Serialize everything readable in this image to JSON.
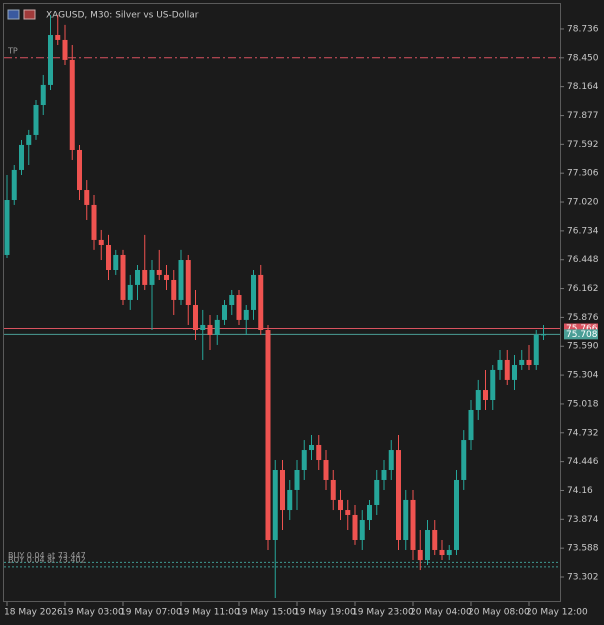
{
  "chart_data": {
    "type": "candlestick",
    "title": "XAGUSD, M30:  Silver vs US-Dollar",
    "categories": [
      "18 May 2026",
      null,
      null,
      null,
      null,
      null,
      null,
      null,
      "19 May 03:00",
      null,
      null,
      null,
      null,
      null,
      null,
      null,
      "19 May 07:00",
      null,
      null,
      null,
      null,
      null,
      null,
      null,
      "19 May 11:00",
      null,
      null,
      null,
      null,
      null,
      null,
      null,
      "19 May 15:00",
      null,
      null,
      null,
      null,
      null,
      null,
      null,
      "19 May 19:00",
      null,
      null,
      null,
      null,
      null,
      null,
      null,
      "19 May 23:00",
      null,
      null,
      null,
      null,
      null,
      null,
      null,
      "20 May 04:00",
      null,
      null,
      null,
      null,
      null,
      null,
      null,
      "20 May 08:00",
      null,
      null,
      null,
      null,
      null,
      null,
      null,
      "20 May 12:00",
      null,
      null
    ],
    "open": [
      76.495,
      77.04,
      77.338,
      77.586,
      77.685,
      77.982,
      78.181,
      78.676,
      78.627,
      78.429,
      77.536,
      77.139,
      76.991,
      76.644,
      76.594,
      76.346,
      76.495,
      76.049,
      76.198,
      76.346,
      76.198,
      76.346,
      76.297,
      76.247,
      76.049,
      76.445,
      75.999,
      75.751,
      75.801,
      75.702,
      75.851,
      75.999,
      76.098,
      75.851,
      75.95,
      76.297,
      75.751,
      73.669,
      74.363,
      73.966,
      74.165,
      74.363,
      74.561,
      74.611,
      74.462,
      74.264,
      74.066,
      73.966,
      73.917,
      73.669,
      73.867,
      74.016,
      74.264,
      74.363,
      74.561,
      73.669,
      74.066,
      73.57,
      73.47,
      73.768,
      73.57,
      73.52,
      73.57,
      74.264,
      74.66,
      74.958,
      75.156,
      75.057,
      75.355,
      75.454,
      75.256,
      75.404,
      75.454,
      75.404,
      75.702
    ],
    "high": [
      77.288,
      77.387,
      77.635,
      77.735,
      78.032,
      78.28,
      78.875,
      78.875,
      78.776,
      78.577,
      77.586,
      77.238,
      77.09,
      76.743,
      76.694,
      76.545,
      76.545,
      76.297,
      76.396,
      76.694,
      76.445,
      76.545,
      76.396,
      76.346,
      76.545,
      76.495,
      76.148,
      75.95,
      75.9,
      75.9,
      76.049,
      76.148,
      76.148,
      75.999,
      76.346,
      76.396,
      75.801,
      74.462,
      74.462,
      74.264,
      74.462,
      74.66,
      74.71,
      74.71,
      74.561,
      74.363,
      74.165,
      74.066,
      74.016,
      73.966,
      74.066,
      74.363,
      74.462,
      74.66,
      74.71,
      74.165,
      74.165,
      73.768,
      73.867,
      73.867,
      73.669,
      73.619,
      74.363,
      74.759,
      75.057,
      75.256,
      75.355,
      75.404,
      75.553,
      75.553,
      75.503,
      75.553,
      75.603,
      75.751,
      75.801
    ],
    "low": [
      76.465,
      76.991,
      77.288,
      77.387,
      77.636,
      77.883,
      78.131,
      78.577,
      78.379,
      77.437,
      77.04,
      76.842,
      76.545,
      76.445,
      76.247,
      76.297,
      75.999,
      75.95,
      76.049,
      76.148,
      75.751,
      76.247,
      76.148,
      75.9,
      75.999,
      75.801,
      75.652,
      75.454,
      75.553,
      75.603,
      75.801,
      75.9,
      75.801,
      75.702,
      75.851,
      75.702,
      73.57,
      73.094,
      73.768,
      73.867,
      73.966,
      74.264,
      74.462,
      74.363,
      74.165,
      73.966,
      73.867,
      73.768,
      73.62,
      73.57,
      73.768,
      73.917,
      74.165,
      74.264,
      73.57,
      73.57,
      73.47,
      73.371,
      73.421,
      73.52,
      73.47,
      73.47,
      73.52,
      74.165,
      74.561,
      74.859,
      74.958,
      74.958,
      75.256,
      75.206,
      75.156,
      75.355,
      75.355,
      75.355,
      75.652
    ],
    "close": [
      77.04,
      77.338,
      77.586,
      77.685,
      77.982,
      78.181,
      78.676,
      78.627,
      78.429,
      77.536,
      77.139,
      76.991,
      76.644,
      76.594,
      76.346,
      76.495,
      76.049,
      76.198,
      76.346,
      76.198,
      76.346,
      76.297,
      76.247,
      76.049,
      76.445,
      75.999,
      75.751,
      75.801,
      75.702,
      75.851,
      75.999,
      76.098,
      75.851,
      75.95,
      76.297,
      75.751,
      73.669,
      74.363,
      73.966,
      74.165,
      74.363,
      74.561,
      74.611,
      74.462,
      74.264,
      74.066,
      73.966,
      73.917,
      73.669,
      73.867,
      74.016,
      74.264,
      74.363,
      74.561,
      73.669,
      74.066,
      73.57,
      73.47,
      73.768,
      73.57,
      73.52,
      73.57,
      74.264,
      74.66,
      74.958,
      75.156,
      75.057,
      75.355,
      75.454,
      75.256,
      75.404,
      75.454,
      75.404,
      75.702,
      75.708
    ],
    "up_color": "#26a69a",
    "down_color": "#ef5350",
    "ylim": [
      73.074,
      78.924
    ],
    "yticks": [
      73.302,
      73.588,
      73.874,
      74.16,
      74.446,
      74.732,
      75.018,
      75.304,
      {
        "value": 75.59,
        "label": "75.590"
      },
      75.876,
      76.162,
      76.448,
      76.734,
      {
        "value": 77.02,
        "label": "77.020"
      },
      77.306,
      77.592,
      77.877,
      78.164,
      {
        "value": 78.45,
        "label": "78.450"
      },
      78.736
    ],
    "levels": [
      {
        "label": "TP",
        "value": 78.45,
        "color": "#d9535f",
        "style": "dashdot"
      },
      {
        "label": "BUY 0.04 at 73.447",
        "value": 73.447,
        "color": "#3f9a92",
        "style": "dotted"
      },
      {
        "label": "BUY 0.04 at 73.402",
        "value": 73.402,
        "color": "#3f9a92",
        "style": "dotted"
      }
    ],
    "price_tags": [
      {
        "value": 75.766,
        "color": "#d9535f"
      },
      {
        "value": 75.708,
        "color": "#4a9e96"
      }
    ]
  }
}
